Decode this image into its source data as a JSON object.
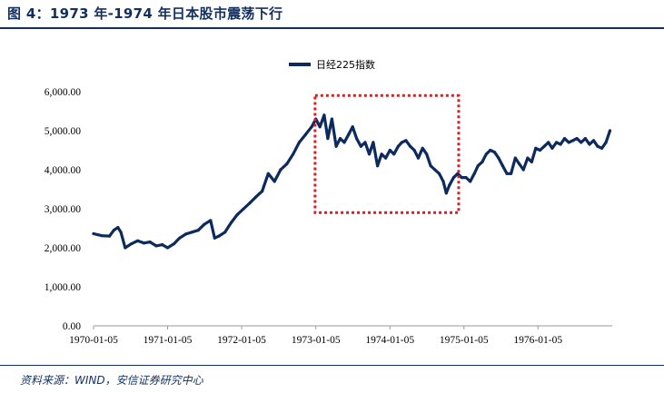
{
  "header": {
    "title": "图 4：1973 年-1974 年日本股市震荡下行"
  },
  "footer": {
    "source": "资料来源：WIND，安信证券研究中心"
  },
  "colors": {
    "line": "#0d2a5e",
    "highlight_box": "#e8181e",
    "axis": "#999999"
  },
  "chart_data": {
    "type": "line",
    "title": "",
    "xlabel": "",
    "ylabel": "",
    "ylim": [
      0,
      6000
    ],
    "xlim": [
      "1970-01-05",
      "1977-01-05"
    ],
    "grid": false,
    "legend_position": "top-center",
    "y_ticks": [
      "0.00",
      "1,000.00",
      "2,000.00",
      "3,000.00",
      "4,000.00",
      "5,000.00",
      "6,000.00"
    ],
    "x_ticks": [
      "1970-01-05",
      "1971-01-05",
      "1972-01-05",
      "1973-01-05",
      "1974-01-05",
      "1975-01-05",
      "1976-01-05"
    ],
    "highlight": {
      "x_start": "1973-01-01",
      "x_end": "1974-12-10",
      "y_low": 2900,
      "y_high": 5900
    },
    "series": [
      {
        "name": "日经225指数",
        "x": [
          "1970-01-05",
          "1970-02-15",
          "1970-03-25",
          "1970-04-15",
          "1970-05-05",
          "1970-05-20",
          "1970-06-10",
          "1970-07-10",
          "1970-08-10",
          "1970-09-10",
          "1970-10-10",
          "1970-11-10",
          "1970-12-10",
          "1971-01-05",
          "1971-02-05",
          "1971-03-05",
          "1971-04-05",
          "1971-05-05",
          "1971-06-05",
          "1971-07-05",
          "1971-08-05",
          "1971-08-25",
          "1971-09-15",
          "1971-10-15",
          "1971-11-15",
          "1971-12-15",
          "1972-01-15",
          "1972-02-15",
          "1972-03-15",
          "1972-04-15",
          "1972-05-15",
          "1972-06-15",
          "1972-07-15",
          "1972-08-15",
          "1972-09-15",
          "1972-10-15",
          "1972-11-15",
          "1972-12-15",
          "1973-01-05",
          "1973-01-25",
          "1973-02-15",
          "1973-03-05",
          "1973-03-25",
          "1973-04-15",
          "1973-05-05",
          "1973-05-25",
          "1973-06-15",
          "1973-07-05",
          "1973-07-25",
          "1973-08-15",
          "1973-09-05",
          "1973-09-25",
          "1973-10-15",
          "1973-11-05",
          "1973-11-25",
          "1973-12-15",
          "1974-01-05",
          "1974-01-25",
          "1974-02-15",
          "1974-03-05",
          "1974-03-25",
          "1974-04-15",
          "1974-05-05",
          "1974-05-25",
          "1974-06-15",
          "1974-07-05",
          "1974-07-25",
          "1974-08-15",
          "1974-09-05",
          "1974-09-25",
          "1974-10-10",
          "1974-10-25",
          "1974-11-15",
          "1974-12-05",
          "1974-12-25",
          "1975-01-15",
          "1975-02-05",
          "1975-02-25",
          "1975-03-15",
          "1975-04-05",
          "1975-04-25",
          "1975-05-15",
          "1975-06-05",
          "1975-06-25",
          "1975-07-15",
          "1975-08-05",
          "1975-08-25",
          "1975-09-15",
          "1975-10-05",
          "1975-10-25",
          "1975-11-15",
          "1975-12-05",
          "1975-12-25",
          "1976-01-15",
          "1976-02-05",
          "1976-02-25",
          "1976-03-15",
          "1976-04-05",
          "1976-04-25",
          "1976-05-15",
          "1976-06-05",
          "1976-06-25",
          "1976-07-15",
          "1976-08-05",
          "1976-08-25",
          "1976-09-15",
          "1976-10-05",
          "1976-10-25",
          "1976-11-15",
          "1976-12-05",
          "1976-12-25"
        ],
        "y": [
          2360,
          2310,
          2300,
          2450,
          2520,
          2400,
          2000,
          2100,
          2180,
          2120,
          2150,
          2050,
          2080,
          2000,
          2100,
          2250,
          2350,
          2400,
          2450,
          2600,
          2700,
          2250,
          2300,
          2400,
          2650,
          2850,
          3000,
          3150,
          3300,
          3450,
          3900,
          3700,
          4000,
          4150,
          4400,
          4700,
          4900,
          5100,
          5300,
          5100,
          5400,
          4800,
          5300,
          4600,
          4800,
          4700,
          4900,
          5100,
          4800,
          4600,
          4700,
          4400,
          4700,
          4100,
          4400,
          4300,
          4500,
          4400,
          4600,
          4700,
          4750,
          4600,
          4500,
          4300,
          4550,
          4400,
          4100,
          4000,
          3900,
          3700,
          3400,
          3600,
          3800,
          3900,
          3800,
          3800,
          3700,
          3900,
          4100,
          4200,
          4400,
          4500,
          4450,
          4300,
          4100,
          3900,
          3900,
          4300,
          4150,
          4000,
          4300,
          4200,
          4550,
          4500,
          4600,
          4700,
          4550,
          4700,
          4650,
          4800,
          4700,
          4750,
          4800,
          4700,
          4800,
          4650,
          4750,
          4600,
          4550,
          4700,
          5000
        ]
      }
    ]
  }
}
